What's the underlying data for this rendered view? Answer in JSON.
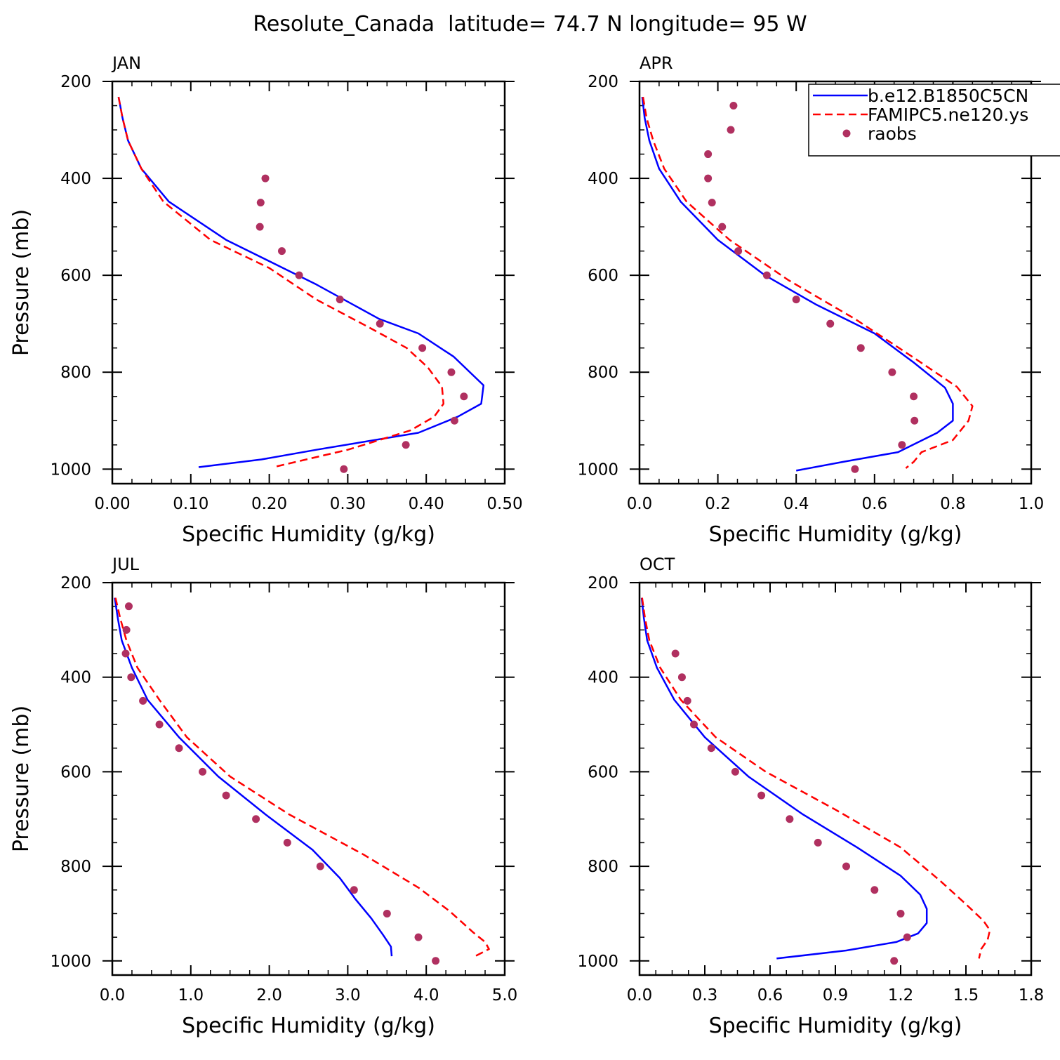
{
  "title": "Resolute_Canada  latitude= 74.7 N longitude= 95 W",
  "colors": {
    "model1": "#0000ff",
    "model2": "#ff0000",
    "obs": "#b03060"
  },
  "legend": {
    "panel": 1,
    "entries": [
      {
        "label": "b.e12.B1850C5CN",
        "style": "solid",
        "color": "#0000ff"
      },
      {
        "label": "FAMIPC5.ne120.ys",
        "style": "dashed",
        "color": "#ff0000"
      },
      {
        "label": "raobs",
        "style": "dots",
        "color": "#b03060"
      }
    ]
  },
  "chart_data": [
    {
      "type": "line",
      "panel_label": "JAN",
      "xlabel": "Specific Humidity (g/kg)",
      "ylabel": "Pressure (mb)",
      "xlim": [
        0,
        0.5
      ],
      "ylim": [
        200,
        1030
      ],
      "y_inverted": true,
      "xticks": [
        "0.00",
        "0.10",
        "0.20",
        "0.30",
        "0.40",
        "0.50"
      ],
      "yticks": [
        "200",
        "400",
        "600",
        "800",
        "1000"
      ],
      "series": [
        {
          "name": "b.e12.B1850C5CN",
          "style": "solid",
          "color": "#0000ff",
          "x": [
            0.008,
            0.013,
            0.02,
            0.037,
            0.072,
            0.145,
            0.26,
            0.34,
            0.39,
            0.435,
            0.473,
            0.47,
            0.44,
            0.39,
            0.26,
            0.19,
            0.11
          ],
          "y": [
            232,
            275,
            322,
            380,
            448,
            527,
            619,
            690,
            720,
            768,
            827,
            865,
            892,
            925,
            960,
            980,
            996
          ]
        },
        {
          "name": "FAMIPC5.ne120.ys",
          "style": "dashed",
          "color": "#ff0000",
          "x": [
            0.008,
            0.013,
            0.02,
            0.037,
            0.065,
            0.125,
            0.2,
            0.26,
            0.33,
            0.375,
            0.402,
            0.42,
            0.422,
            0.41,
            0.38,
            0.3,
            0.205
          ],
          "y": [
            232,
            275,
            322,
            380,
            448,
            527,
            585,
            650,
            710,
            750,
            790,
            830,
            865,
            892,
            920,
            960,
            996
          ]
        },
        {
          "name": "raobs",
          "style": "dots",
          "color": "#b03060",
          "x": [
            0.195,
            0.189,
            0.188,
            0.216,
            0.238,
            0.29,
            0.341,
            0.395,
            0.432,
            0.448,
            0.436,
            0.374,
            0.295
          ],
          "y": [
            400,
            450,
            500,
            550,
            600,
            650,
            700,
            750,
            800,
            850,
            900,
            950,
            1000
          ]
        }
      ]
    },
    {
      "type": "line",
      "panel_label": "APR",
      "xlabel": "Specific Humidity (g/kg)",
      "ylabel": "",
      "xlim": [
        0,
        1.0
      ],
      "ylim": [
        200,
        1030
      ],
      "y_inverted": true,
      "xticks": [
        "0.0",
        "0.2",
        "0.4",
        "0.6",
        "0.8",
        "1.0"
      ],
      "yticks": [
        "200",
        "400",
        "600",
        "800",
        "1000"
      ],
      "series": [
        {
          "name": "b.e12.B1850C5CN",
          "style": "solid",
          "color": "#0000ff",
          "x": [
            0.007,
            0.013,
            0.025,
            0.05,
            0.105,
            0.2,
            0.32,
            0.45,
            0.6,
            0.7,
            0.78,
            0.8,
            0.8,
            0.76,
            0.66,
            0.52,
            0.4
          ],
          "y": [
            232,
            275,
            322,
            380,
            448,
            527,
            600,
            660,
            720,
            780,
            832,
            865,
            900,
            925,
            965,
            985,
            1003
          ]
        },
        {
          "name": "FAMIPC5.ne120.ys",
          "style": "dashed",
          "color": "#ff0000",
          "x": [
            0.009,
            0.018,
            0.035,
            0.063,
            0.12,
            0.23,
            0.38,
            0.55,
            0.7,
            0.81,
            0.85,
            0.84,
            0.8,
            0.72,
            0.7,
            0.68
          ],
          "y": [
            232,
            275,
            322,
            380,
            448,
            527,
            610,
            690,
            770,
            830,
            870,
            900,
            940,
            965,
            985,
            998
          ]
        },
        {
          "name": "raobs",
          "style": "dots",
          "color": "#b03060",
          "x": [
            0.24,
            0.233,
            0.175,
            0.175,
            0.185,
            0.211,
            0.252,
            0.325,
            0.4,
            0.487,
            0.565,
            0.645,
            0.7,
            0.702,
            0.67,
            0.55
          ],
          "y": [
            250,
            300,
            350,
            400,
            450,
            500,
            550,
            600,
            650,
            700,
            750,
            800,
            850,
            900,
            950,
            1000
          ]
        }
      ]
    },
    {
      "type": "line",
      "panel_label": "JUL",
      "xlabel": "Specific Humidity (g/kg)",
      "ylabel": "Pressure (mb)",
      "xlim": [
        0,
        5.0
      ],
      "ylim": [
        200,
        1030
      ],
      "y_inverted": true,
      "xticks": [
        "0.0",
        "1.0",
        "2.0",
        "3.0",
        "4.0",
        "5.0"
      ],
      "yticks": [
        "200",
        "400",
        "600",
        "800",
        "1000"
      ],
      "series": [
        {
          "name": "b.e12.B1850C5CN",
          "style": "solid",
          "color": "#0000ff",
          "x": [
            0.03,
            0.07,
            0.12,
            0.25,
            0.45,
            0.85,
            1.35,
            1.95,
            2.55,
            2.9,
            3.1,
            3.3,
            3.45,
            3.55,
            3.56
          ],
          "y": [
            232,
            275,
            322,
            380,
            448,
            527,
            610,
            690,
            765,
            825,
            870,
            910,
            945,
            970,
            990
          ]
        },
        {
          "name": "FAMIPC5.ne120.ys",
          "style": "dashed",
          "color": "#ff0000",
          "x": [
            0.04,
            0.1,
            0.18,
            0.32,
            0.6,
            0.95,
            1.5,
            2.25,
            3.2,
            3.9,
            4.3,
            4.6,
            4.75,
            4.8,
            4.6
          ],
          "y": [
            232,
            275,
            322,
            380,
            448,
            527,
            610,
            690,
            775,
            845,
            895,
            940,
            960,
            975,
            992
          ]
        },
        {
          "name": "raobs",
          "style": "dots",
          "color": "#b03060",
          "x": [
            0.21,
            0.18,
            0.17,
            0.24,
            0.39,
            0.6,
            0.85,
            1.15,
            1.45,
            1.83,
            2.23,
            2.65,
            3.08,
            3.5,
            3.9,
            4.12
          ],
          "y": [
            250,
            300,
            350,
            400,
            450,
            500,
            550,
            600,
            650,
            700,
            750,
            800,
            850,
            900,
            950,
            1000
          ]
        }
      ]
    },
    {
      "type": "line",
      "panel_label": "OCT",
      "xlabel": "Specific Humidity (g/kg)",
      "ylabel": "",
      "xlim": [
        0,
        1.8
      ],
      "ylim": [
        200,
        1030
      ],
      "y_inverted": true,
      "xticks": [
        "0.0",
        "0.3",
        "0.6",
        "0.9",
        "1.2",
        "1.5",
        "1.8"
      ],
      "yticks": [
        "200",
        "400",
        "600",
        "800",
        "1000"
      ],
      "series": [
        {
          "name": "b.e12.B1850C5CN",
          "style": "solid",
          "color": "#0000ff",
          "x": [
            0.01,
            0.02,
            0.035,
            0.08,
            0.16,
            0.3,
            0.5,
            0.75,
            1.0,
            1.2,
            1.29,
            1.32,
            1.32,
            1.28,
            1.18,
            0.95,
            0.63
          ],
          "y": [
            232,
            275,
            322,
            380,
            448,
            527,
            610,
            690,
            760,
            820,
            860,
            890,
            920,
            942,
            960,
            978,
            995
          ]
        },
        {
          "name": "FAMIPC5.ne120.ys",
          "style": "dashed",
          "color": "#ff0000",
          "x": [
            0.012,
            0.025,
            0.045,
            0.095,
            0.19,
            0.35,
            0.58,
            0.9,
            1.2,
            1.38,
            1.5,
            1.58,
            1.61,
            1.6,
            1.57,
            1.56
          ],
          "y": [
            232,
            275,
            322,
            380,
            448,
            527,
            600,
            680,
            760,
            830,
            880,
            915,
            935,
            955,
            975,
            995
          ]
        },
        {
          "name": "raobs",
          "style": "dots",
          "color": "#b03060",
          "x": [
            0.165,
            0.195,
            0.22,
            0.25,
            0.33,
            0.44,
            0.56,
            0.69,
            0.82,
            0.95,
            1.08,
            1.2,
            1.23,
            1.17
          ],
          "y": [
            350,
            400,
            450,
            500,
            550,
            600,
            650,
            700,
            750,
            800,
            850,
            900,
            950,
            1000
          ]
        }
      ]
    }
  ]
}
